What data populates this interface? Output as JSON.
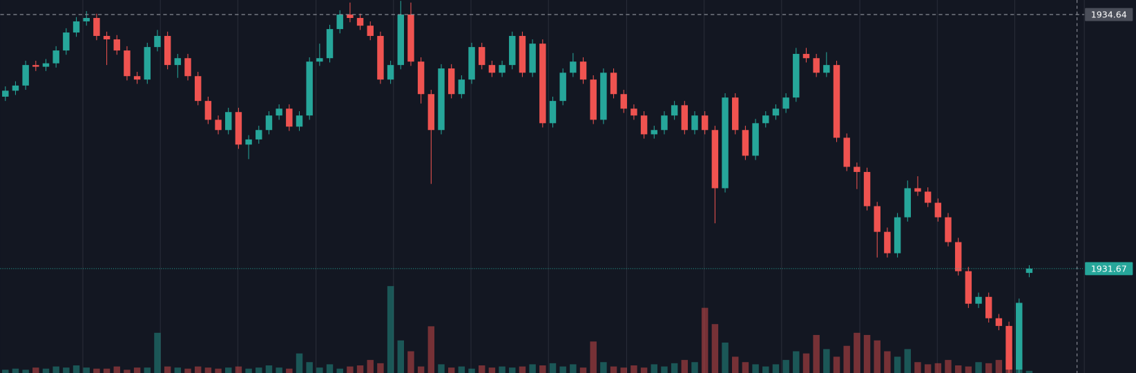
{
  "chart_data": {
    "type": "candlestick",
    "up_color": "#26a69a",
    "down_color": "#ef5350",
    "ylim": [
      1930.45,
      1934.81
    ],
    "volume_lim": [
      0,
      100
    ],
    "price_lines": [
      {
        "value": 1934.64,
        "color": "#4a4e59"
      },
      {
        "value": 1931.67,
        "color": "#26a69a"
      }
    ],
    "open": [
      1933.68,
      1933.75,
      1933.81,
      1934.05,
      1934.03,
      1934.07,
      1934.22,
      1934.43,
      1934.56,
      1934.6,
      1934.39,
      1934.35,
      1934.22,
      1933.92,
      1933.88,
      1934.26,
      1934.39,
      1934.05,
      1934.13,
      1933.92,
      1933.63,
      1933.41,
      1933.29,
      1933.5,
      1933.12,
      1933.18,
      1933.29,
      1933.46,
      1933.54,
      1933.33,
      1933.46,
      1934.09,
      1934.13,
      1934.47,
      1934.64,
      1934.6,
      1934.51,
      1934.39,
      1933.88,
      1934.05,
      1934.64,
      1934.09,
      1933.71,
      1933.29,
      1934.01,
      1933.71,
      1933.88,
      1934.26,
      1934.05,
      1933.96,
      1934.05,
      1934.39,
      1933.96,
      1934.3,
      1933.37,
      1933.63,
      1933.96,
      1934.09,
      1933.88,
      1933.41,
      1933.96,
      1933.71,
      1933.54,
      1933.46,
      1933.24,
      1933.29,
      1933.46,
      1933.58,
      1933.29,
      1933.46,
      1933.29,
      1932.61,
      1933.67,
      1933.29,
      1932.99,
      1933.37,
      1933.46,
      1933.54,
      1933.67,
      1934.18,
      1934.13,
      1933.96,
      1934.05,
      1933.2,
      1932.86,
      1932.8,
      1932.4,
      1932.1,
      1931.85,
      1932.27,
      1932.61,
      1932.57,
      1932.44,
      1932.27,
      1931.98,
      1931.64,
      1931.26,
      1931.34,
      1931.09,
      1931.0,
      1930.49,
      1931.62
    ],
    "high": [
      1933.8,
      1933.86,
      1934.1,
      1934.1,
      1934.12,
      1934.27,
      1934.48,
      1934.61,
      1934.68,
      1934.65,
      1934.44,
      1934.4,
      1934.27,
      1933.97,
      1934.31,
      1934.46,
      1934.44,
      1934.18,
      1934.18,
      1933.97,
      1933.68,
      1933.46,
      1933.55,
      1933.55,
      1933.23,
      1933.34,
      1933.51,
      1933.59,
      1933.59,
      1933.51,
      1934.14,
      1934.3,
      1934.52,
      1934.69,
      1934.78,
      1934.65,
      1934.56,
      1934.44,
      1934.1,
      1934.8,
      1934.78,
      1934.14,
      1933.76,
      1934.06,
      1934.06,
      1933.93,
      1934.31,
      1934.31,
      1934.1,
      1934.1,
      1934.44,
      1934.44,
      1934.35,
      1934.35,
      1933.68,
      1934.01,
      1934.19,
      1934.14,
      1933.93,
      1934.01,
      1934.01,
      1933.76,
      1933.59,
      1933.51,
      1933.34,
      1933.51,
      1933.63,
      1933.63,
      1933.51,
      1933.51,
      1933.34,
      1933.72,
      1933.72,
      1933.34,
      1933.42,
      1933.51,
      1933.59,
      1933.72,
      1934.25,
      1934.25,
      1934.18,
      1934.2,
      1934.1,
      1933.25,
      1932.91,
      1932.85,
      1932.45,
      1932.15,
      1932.32,
      1932.7,
      1932.75,
      1932.62,
      1932.49,
      1932.32,
      1932.03,
      1931.69,
      1931.39,
      1931.39,
      1931.14,
      1931.05,
      1931.32,
      1931.71
    ],
    "low": [
      1933.63,
      1933.7,
      1933.76,
      1933.98,
      1933.98,
      1934.02,
      1934.17,
      1934.38,
      1934.51,
      1934.34,
      1934.05,
      1934.17,
      1933.87,
      1933.83,
      1933.83,
      1934.21,
      1934.0,
      1933.9,
      1933.87,
      1933.58,
      1933.36,
      1933.24,
      1933.24,
      1933.07,
      1932.95,
      1933.13,
      1933.24,
      1933.41,
      1933.28,
      1933.28,
      1933.41,
      1934.04,
      1934.08,
      1934.42,
      1934.55,
      1934.46,
      1934.34,
      1933.83,
      1933.83,
      1934.0,
      1934.04,
      1933.6,
      1932.66,
      1933.24,
      1933.66,
      1933.66,
      1933.83,
      1934.0,
      1933.91,
      1933.91,
      1934.0,
      1933.91,
      1933.91,
      1933.32,
      1933.32,
      1933.58,
      1933.91,
      1933.83,
      1933.36,
      1933.36,
      1933.66,
      1933.49,
      1933.41,
      1933.19,
      1933.19,
      1933.24,
      1933.41,
      1933.24,
      1933.24,
      1933.24,
      1932.2,
      1932.56,
      1933.24,
      1932.94,
      1932.94,
      1933.32,
      1933.41,
      1933.49,
      1933.62,
      1934.08,
      1933.91,
      1933.91,
      1933.15,
      1932.81,
      1932.6,
      1932.35,
      1931.8,
      1931.8,
      1931.8,
      1932.22,
      1932.52,
      1932.39,
      1932.22,
      1931.93,
      1931.59,
      1931.21,
      1931.21,
      1931.04,
      1930.95,
      1930.44,
      1930.44,
      1931.57
    ],
    "close": [
      1933.75,
      1933.81,
      1934.05,
      1934.03,
      1934.07,
      1934.22,
      1934.43,
      1934.56,
      1934.6,
      1934.39,
      1934.35,
      1934.22,
      1933.92,
      1933.88,
      1934.26,
      1934.39,
      1934.05,
      1934.13,
      1933.92,
      1933.63,
      1933.41,
      1933.29,
      1933.5,
      1933.12,
      1933.18,
      1933.29,
      1933.46,
      1933.54,
      1933.33,
      1933.46,
      1934.09,
      1934.13,
      1934.47,
      1934.64,
      1934.6,
      1934.51,
      1934.39,
      1933.88,
      1934.05,
      1934.64,
      1934.09,
      1933.71,
      1933.29,
      1934.01,
      1933.71,
      1933.88,
      1934.26,
      1934.05,
      1933.96,
      1934.05,
      1934.39,
      1933.96,
      1934.3,
      1933.37,
      1933.63,
      1933.96,
      1934.09,
      1933.88,
      1933.41,
      1933.96,
      1933.71,
      1933.54,
      1933.46,
      1933.24,
      1933.29,
      1933.46,
      1933.58,
      1933.29,
      1933.46,
      1933.29,
      1932.61,
      1933.67,
      1933.29,
      1932.99,
      1933.37,
      1933.46,
      1933.54,
      1933.67,
      1934.18,
      1934.13,
      1933.96,
      1934.05,
      1933.2,
      1932.86,
      1932.8,
      1932.4,
      1932.1,
      1931.85,
      1932.27,
      1932.61,
      1932.57,
      1932.44,
      1932.27,
      1931.98,
      1931.64,
      1931.26,
      1931.34,
      1931.09,
      1931.0,
      1930.49,
      1931.27,
      1931.67
    ],
    "volume": [
      3,
      4,
      3,
      5,
      4,
      6,
      5,
      7,
      5,
      4,
      4,
      6,
      3,
      5,
      5,
      37,
      6,
      5,
      4,
      6,
      5,
      4,
      5,
      6,
      4,
      5,
      7,
      5,
      4,
      18,
      10,
      5,
      8,
      4,
      6,
      7,
      12,
      9,
      80,
      30,
      20,
      6,
      43,
      8,
      5,
      6,
      4,
      7,
      5,
      6,
      5,
      6,
      8,
      7,
      9,
      6,
      8,
      5,
      29,
      10,
      6,
      5,
      7,
      5,
      8,
      6,
      9,
      12,
      10,
      60,
      45,
      28,
      15,
      10,
      8,
      6,
      8,
      12,
      20,
      18,
      35,
      22,
      15,
      25,
      37,
      35,
      30,
      20,
      15,
      22,
      10,
      8,
      9,
      12,
      7,
      6,
      10,
      9,
      12,
      15,
      18,
      2
    ]
  }
}
